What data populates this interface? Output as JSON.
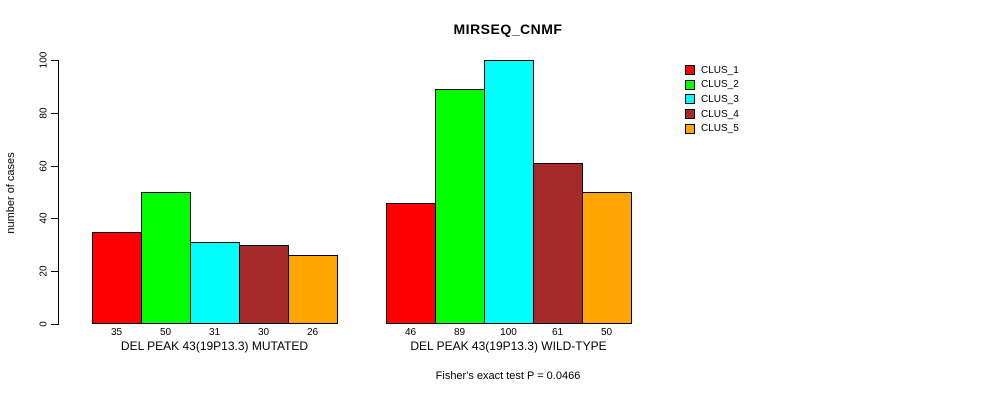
{
  "title": "MIRSEQ_CNMF",
  "footer": "Fisher's exact test P = 0.0466",
  "chart_data": {
    "type": "bar",
    "title": "MIRSEQ_CNMF",
    "xlabel": "",
    "ylabel": "number of cases",
    "ylim": [
      0,
      100
    ],
    "yticks": [
      0,
      20,
      40,
      60,
      80,
      100
    ],
    "grid": false,
    "legend_position": "right",
    "bar_value_labels_shown": true,
    "categories": [
      "DEL PEAK 43(19P13.3) MUTATED",
      "DEL PEAK 43(19P13.3) WILD-TYPE"
    ],
    "series": [
      {
        "name": "CLUS_1",
        "color": "#FF0000",
        "values": [
          35,
          46
        ]
      },
      {
        "name": "CLUS_2",
        "color": "#00FF00",
        "values": [
          50,
          89
        ]
      },
      {
        "name": "CLUS_3",
        "color": "#00FFFF",
        "values": [
          31,
          100
        ]
      },
      {
        "name": "CLUS_4",
        "color": "#A52A2A",
        "values": [
          30,
          61
        ]
      },
      {
        "name": "CLUS_5",
        "color": "#FFA500",
        "values": [
          26,
          50
        ]
      }
    ],
    "annotation": "Fisher's exact test P = 0.0466"
  }
}
